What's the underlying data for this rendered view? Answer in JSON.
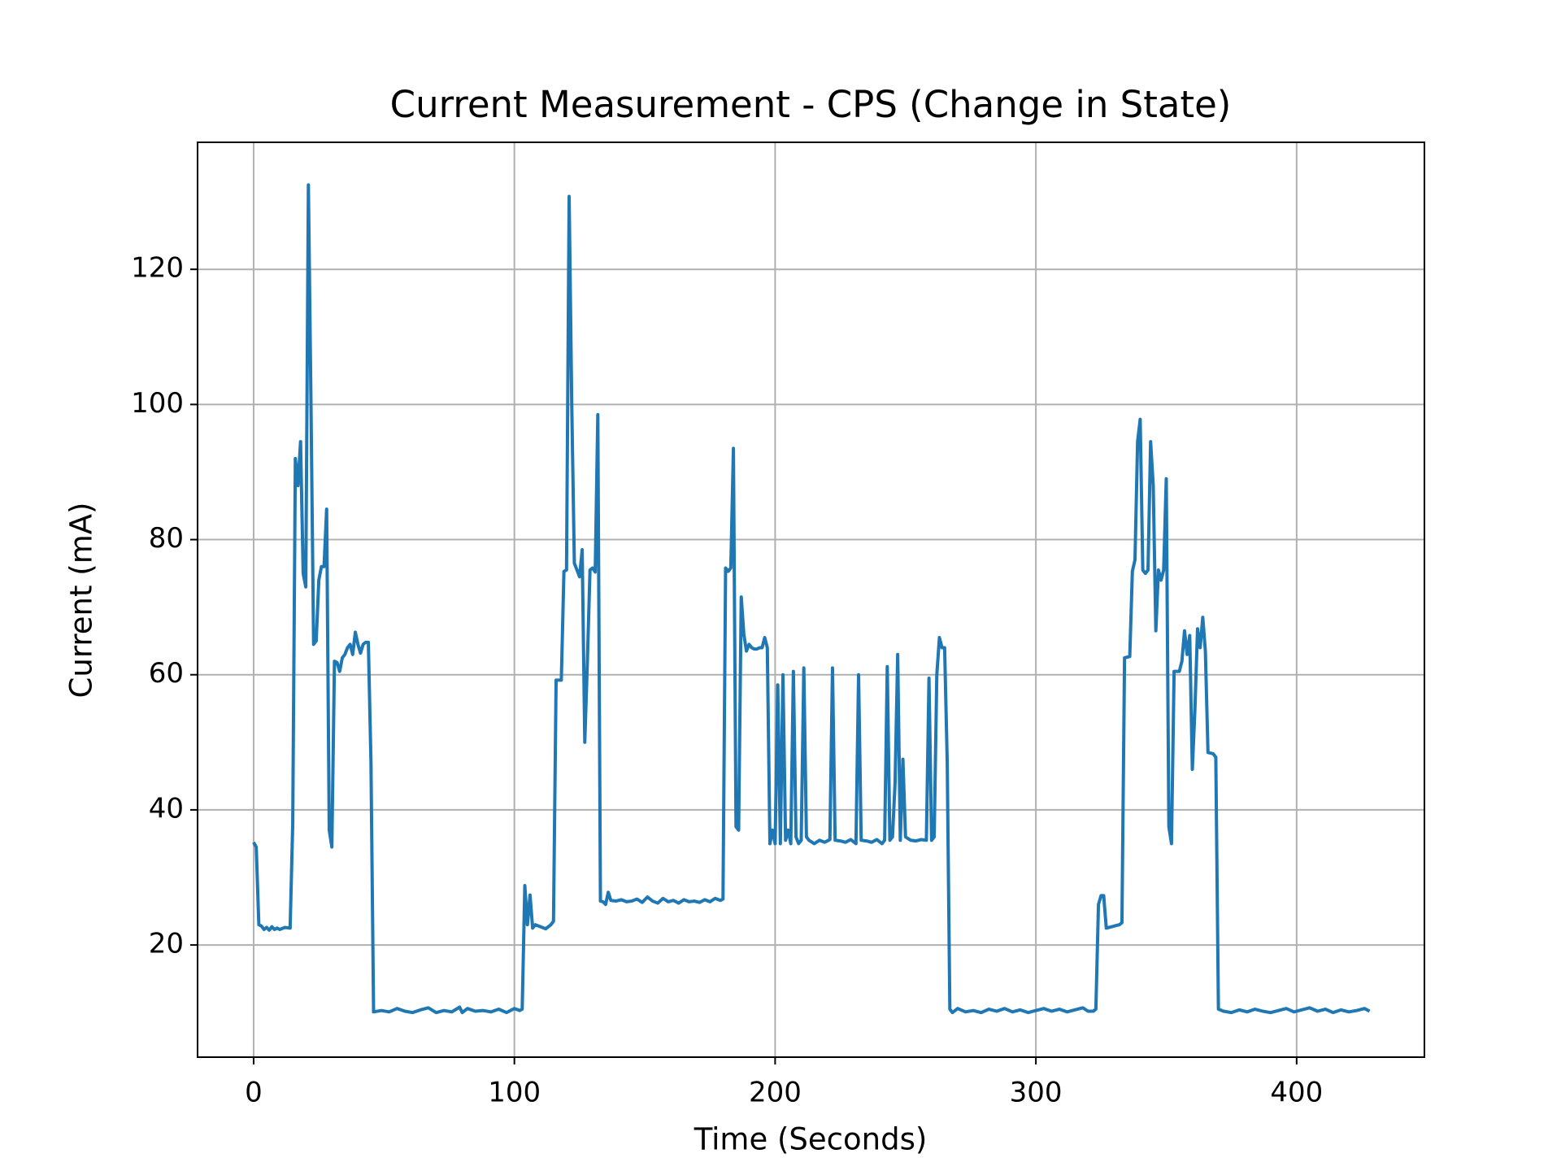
{
  "chart_data": {
    "type": "line",
    "title": "Current Measurement - CPS (Change in State)",
    "x_label": "Time (Seconds)",
    "y_label": "Current (mA)",
    "xlim": [
      -21.5,
      449
    ],
    "ylim": [
      3.4,
      138.8
    ],
    "xticks": [
      0,
      100,
      200,
      300,
      400
    ],
    "yticks": [
      20,
      40,
      60,
      80,
      100,
      120
    ],
    "grid": true,
    "series": [
      {
        "color": "#1f77b4",
        "x": [
          0,
          1,
          2,
          3,
          4,
          5,
          6,
          7,
          8,
          9,
          10,
          12,
          14,
          15,
          16,
          17,
          18,
          19,
          20,
          21,
          22,
          23,
          24,
          25,
          26,
          27,
          28,
          29,
          30,
          31,
          32,
          33,
          34,
          35,
          36,
          37,
          38,
          39,
          40,
          41,
          42,
          43,
          44,
          45,
          46,
          49,
          52,
          55,
          58,
          61,
          64,
          67,
          70,
          73,
          76,
          79,
          80,
          82,
          85,
          88,
          91,
          94,
          97,
          100,
          102,
          103,
          104,
          105,
          106,
          107,
          108,
          110,
          112,
          114,
          115,
          116,
          118,
          119,
          120,
          121,
          122,
          123,
          124,
          125,
          126,
          127,
          128,
          129,
          130,
          131,
          132,
          133,
          134,
          135,
          136,
          137,
          139,
          141,
          143,
          145,
          147,
          149,
          151,
          153,
          155,
          157,
          159,
          161,
          163,
          165,
          167,
          169,
          171,
          173,
          175,
          177,
          179,
          180,
          181,
          182,
          183,
          184,
          185,
          186,
          187,
          188,
          189,
          190,
          191,
          192,
          193,
          194,
          195,
          196,
          197,
          198,
          199,
          200,
          201,
          202,
          203,
          204,
          205,
          206,
          207,
          208,
          209,
          210,
          211,
          212,
          213,
          215,
          217,
          219,
          221,
          222,
          223,
          225,
          227,
          229,
          231,
          232,
          233,
          235,
          237,
          239,
          241,
          242,
          243,
          244,
          245,
          246,
          247,
          248,
          249,
          250,
          252,
          254,
          256,
          258,
          259,
          260,
          261,
          262,
          263,
          264,
          265,
          266,
          267,
          268,
          270,
          273,
          276,
          279,
          282,
          285,
          288,
          291,
          294,
          297,
          300,
          303,
          306,
          309,
          312,
          315,
          318,
          320,
          322,
          323,
          324,
          325,
          326,
          327,
          329,
          331,
          332,
          333,
          334,
          336,
          337,
          338,
          339,
          340,
          341,
          342,
          343,
          344,
          345,
          346,
          347,
          348,
          349,
          350,
          351,
          352,
          353,
          355,
          356,
          357,
          358,
          359,
          360,
          361,
          362,
          363,
          364,
          365,
          366,
          368,
          369,
          370,
          372,
          375,
          378,
          381,
          384,
          387,
          390,
          393,
          396,
          399,
          402,
          405,
          408,
          411,
          414,
          417,
          420,
          423,
          426,
          428
        ],
        "values": [
          35.2,
          34.5,
          23,
          22.8,
          22.3,
          22.6,
          22.2,
          22.7,
          22.3,
          22.5,
          22.3,
          22.6,
          22.5,
          38,
          92,
          88,
          94.5,
          75,
          73,
          132.5,
          100,
          64.5,
          65,
          74,
          76,
          76,
          84.5,
          37,
          34.5,
          62,
          61.8,
          60.5,
          62.5,
          63,
          64,
          64.5,
          63,
          66.3,
          64.5,
          63.2,
          64.5,
          64.8,
          64.8,
          47,
          10.1,
          10.3,
          10.1,
          10.6,
          10.2,
          10,
          10.4,
          10.7,
          10,
          10.3,
          10.1,
          10.8,
          10,
          10.6,
          10.2,
          10.3,
          10.1,
          10.5,
          10,
          10.6,
          10.3,
          10.5,
          28.8,
          23,
          27.4,
          22.5,
          23,
          22.7,
          22.4,
          23,
          23.5,
          59.2,
          59.2,
          75.3,
          75.5,
          130.8,
          100,
          76.5,
          75.5,
          74.5,
          78.5,
          50,
          62,
          75.5,
          75.8,
          75.2,
          98.5,
          26.5,
          26.4,
          26,
          27.8,
          26.6,
          26.5,
          26.7,
          26.4,
          26.5,
          26.8,
          26.3,
          27.1,
          26.5,
          26.2,
          26.9,
          26.4,
          26.6,
          26.2,
          26.7,
          26.4,
          26.5,
          26.3,
          26.7,
          26.4,
          26.9,
          26.6,
          26.8,
          75.8,
          75.3,
          75.8,
          93.5,
          37.5,
          37,
          71.5,
          66,
          63.5,
          64.5,
          64,
          63.8,
          63.8,
          64,
          64,
          65.5,
          64,
          35,
          37,
          35,
          58.5,
          35,
          60,
          35.5,
          37,
          35,
          60.5,
          36,
          35,
          35.5,
          61,
          36,
          35.5,
          35,
          35.5,
          35.2,
          35.6,
          61,
          35.5,
          35.4,
          35.2,
          35.6,
          35,
          60,
          35.5,
          35.4,
          35.2,
          35.6,
          35,
          35.5,
          61.2,
          35.5,
          36,
          44,
          63,
          35.5,
          47.5,
          36,
          35.5,
          35.4,
          35.6,
          35.5,
          59.5,
          35.5,
          36,
          60,
          65.5,
          64,
          64,
          47,
          10.5,
          10,
          10.6,
          10.1,
          10.3,
          10,
          10.5,
          10.2,
          10.6,
          10.1,
          10.4,
          10,
          10.3,
          10.6,
          10.2,
          10.5,
          10.1,
          10.4,
          10.7,
          10.2,
          10.2,
          10.5,
          26,
          27.3,
          27.3,
          22.5,
          22.7,
          22.9,
          23,
          23.3,
          62.5,
          62.7,
          75.3,
          77,
          94.5,
          97.8,
          75.5,
          75,
          75.5,
          94.5,
          88,
          66.5,
          75.5,
          74,
          75.5,
          89,
          37.5,
          35,
          60.5,
          60.5,
          62,
          66.5,
          63,
          65.8,
          46,
          55,
          66.8,
          64,
          68.5,
          63.5,
          48.5,
          48.3,
          47.8,
          10.5,
          10.2,
          10,
          10.4,
          10.1,
          10.5,
          10.2,
          10,
          10.3,
          10.6,
          10.1,
          10.4,
          10.7,
          10.2,
          10.5,
          10,
          10.4,
          10.1,
          10.3,
          10.6,
          10.2
        ]
      }
    ]
  }
}
